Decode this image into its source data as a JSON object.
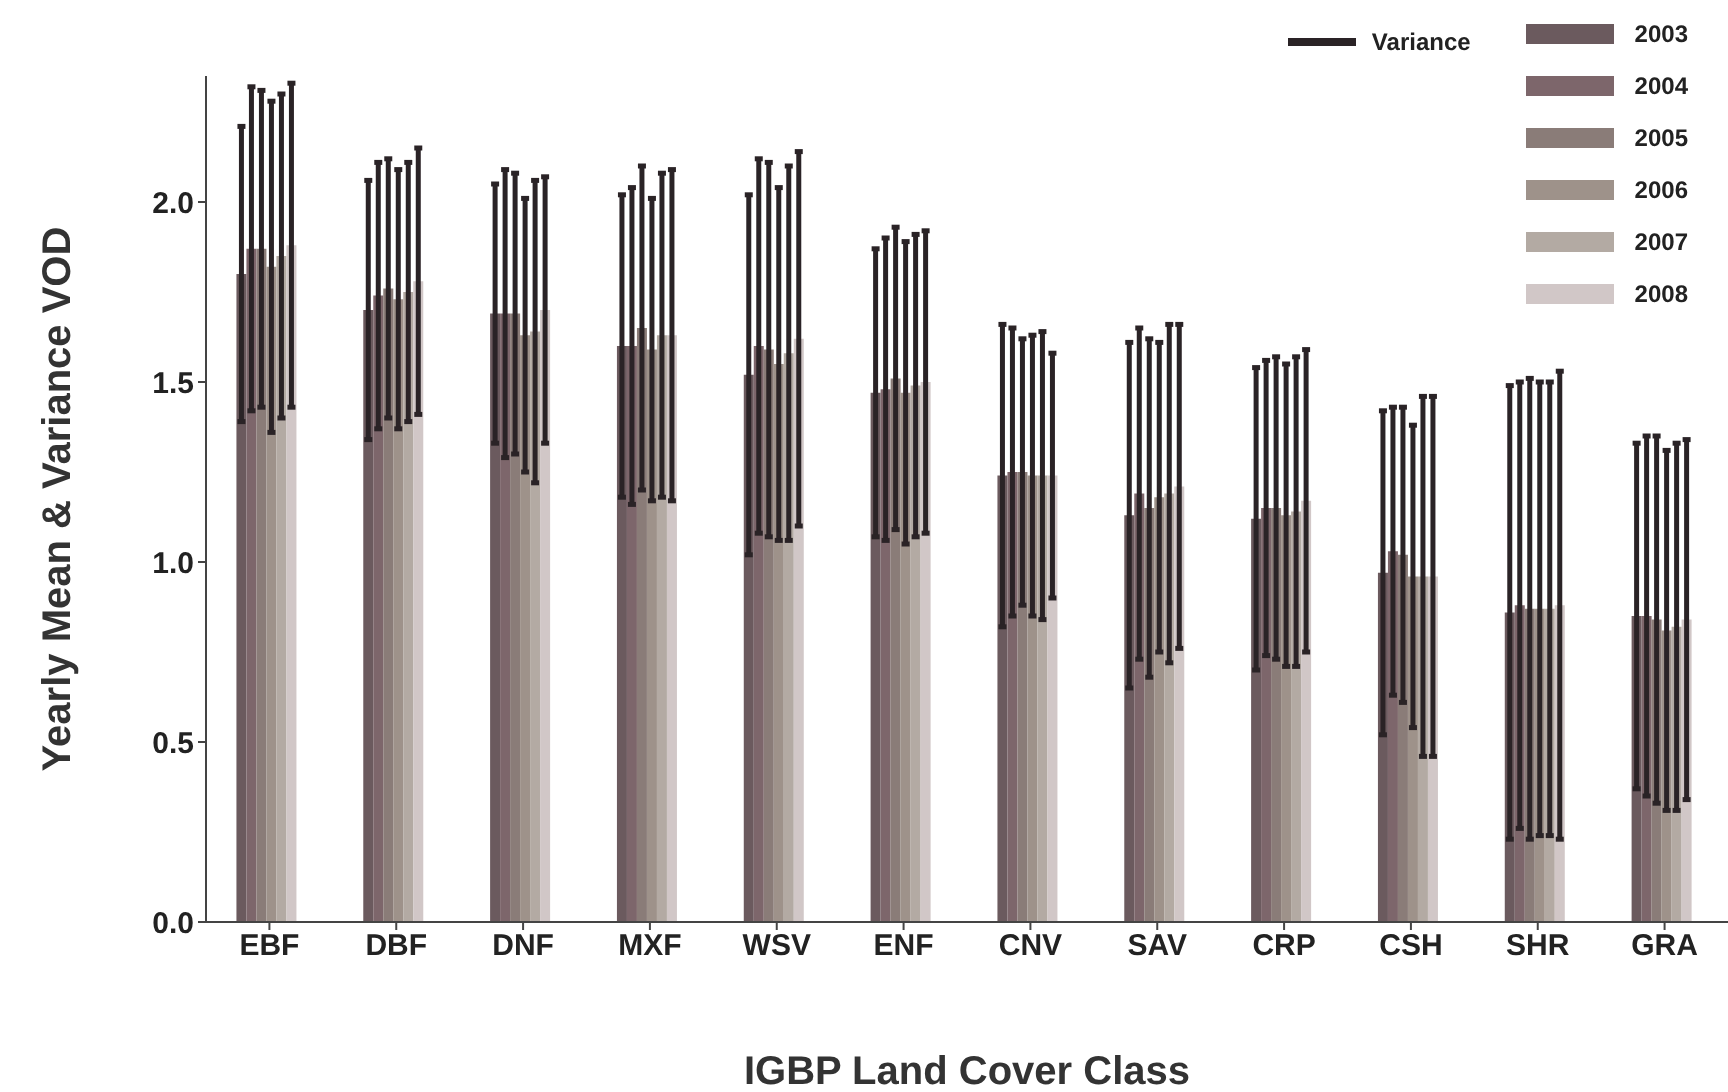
{
  "chart_data": {
    "type": "bar",
    "xlabel": "IGBP Land Cover Class",
    "ylabel": "Yearly Mean & Variance VOD",
    "categories": [
      "EBF",
      "DBF",
      "DNF",
      "MXF",
      "WSV",
      "ENF",
      "CNV",
      "SAV",
      "CRP",
      "CSH",
      "SHR",
      "GRA"
    ],
    "series": [
      {
        "name": "2003",
        "color": "#6b5a5e",
        "values": [
          1.8,
          1.7,
          1.69,
          1.6,
          1.52,
          1.47,
          1.24,
          1.13,
          1.12,
          0.97,
          0.86,
          0.85
        ],
        "errors": [
          0.41,
          0.36,
          0.36,
          0.42,
          0.5,
          0.4,
          0.42,
          0.48,
          0.42,
          0.45,
          0.63,
          0.48
        ]
      },
      {
        "name": "2004",
        "color": "#7d666b",
        "values": [
          1.87,
          1.74,
          1.69,
          1.6,
          1.6,
          1.48,
          1.25,
          1.19,
          1.15,
          1.03,
          0.88,
          0.85
        ],
        "errors": [
          0.45,
          0.37,
          0.4,
          0.44,
          0.52,
          0.42,
          0.4,
          0.46,
          0.41,
          0.4,
          0.62,
          0.5
        ]
      },
      {
        "name": "2005",
        "color": "#8a7c78",
        "values": [
          1.87,
          1.76,
          1.69,
          1.65,
          1.59,
          1.51,
          1.25,
          1.15,
          1.15,
          1.02,
          0.87,
          0.84
        ],
        "errors": [
          0.44,
          0.36,
          0.39,
          0.45,
          0.52,
          0.42,
          0.37,
          0.47,
          0.42,
          0.41,
          0.64,
          0.51
        ]
      },
      {
        "name": "2006",
        "color": "#9e928a",
        "values": [
          1.82,
          1.73,
          1.63,
          1.59,
          1.55,
          1.47,
          1.24,
          1.18,
          1.13,
          0.96,
          0.87,
          0.81
        ],
        "errors": [
          0.46,
          0.36,
          0.38,
          0.42,
          0.49,
          0.42,
          0.39,
          0.43,
          0.42,
          0.42,
          0.63,
          0.5
        ]
      },
      {
        "name": "2007",
        "color": "#b3aaa3",
        "values": [
          1.85,
          1.75,
          1.64,
          1.63,
          1.58,
          1.49,
          1.24,
          1.19,
          1.14,
          0.96,
          0.87,
          0.82
        ],
        "errors": [
          0.45,
          0.36,
          0.42,
          0.45,
          0.52,
          0.42,
          0.4,
          0.47,
          0.43,
          0.5,
          0.63,
          0.51
        ]
      },
      {
        "name": "2008",
        "color": "#d1c7c7",
        "values": [
          1.88,
          1.78,
          1.7,
          1.63,
          1.62,
          1.5,
          1.24,
          1.21,
          1.17,
          0.96,
          0.88,
          0.84
        ],
        "errors": [
          0.45,
          0.37,
          0.37,
          0.46,
          0.52,
          0.42,
          0.34,
          0.45,
          0.42,
          0.5,
          0.65,
          0.5
        ]
      }
    ],
    "ylim": [
      0,
      2.35
    ],
    "yticks": [
      {
        "value": 0,
        "label": "0.0"
      },
      {
        "value": 0.5,
        "label": "0.5"
      },
      {
        "value": 1,
        "label": "1.0"
      },
      {
        "value": 1.5,
        "label": "1.5"
      },
      {
        "value": 2,
        "label": "2.0"
      }
    ],
    "annotations": [
      "Variance"
    ],
    "legend": "top right",
    "grid": false
  }
}
